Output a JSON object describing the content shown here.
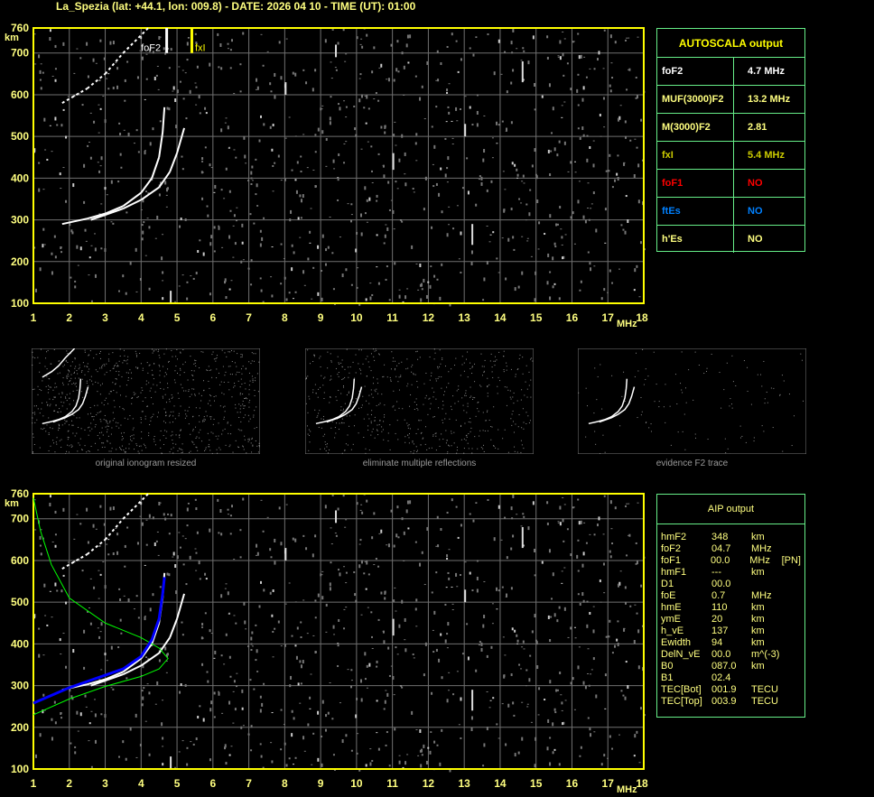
{
  "title": "La_Spezia (lat: +44.1, lon: 009.8) - DATE: 2026 04 10 - TIME (UT): 01:00",
  "colors": {
    "axis": "#ffff00",
    "grid": "#808080",
    "table_border": "#66ee88",
    "trace": "#ffffff",
    "profile": "#00ff00",
    "aip_trace": "#0000ff",
    "foF1": "#ff0000",
    "ftEs": "#0080ff",
    "fxI": "#cccc00"
  },
  "chart_data": [
    {
      "type": "scatter",
      "name": "ionogram-autoscala",
      "xlabel": "MHz",
      "ylabel": "km",
      "xlim": [
        1,
        18
      ],
      "ylim": [
        100,
        760
      ],
      "grid": true,
      "x_ticks": [
        "1",
        "2",
        "3",
        "4",
        "5",
        "6",
        "7",
        "8",
        "9",
        "10",
        "11",
        "12",
        "13",
        "14",
        "15",
        "16",
        "17",
        "18"
      ],
      "y_ticks": [
        "100",
        "200",
        "300",
        "400",
        "500",
        "600",
        "700",
        "760"
      ],
      "markers": [
        {
          "label": "foF2",
          "x": 4.7,
          "color": "#ffffff"
        },
        {
          "label": "fxI",
          "x": 5.4,
          "color": "#ffff00"
        }
      ],
      "o_trace": [
        [
          1.8,
          290
        ],
        [
          2.5,
          303
        ],
        [
          3,
          315
        ],
        [
          3.5,
          333
        ],
        [
          4,
          365
        ],
        [
          4.3,
          400
        ],
        [
          4.5,
          450
        ],
        [
          4.6,
          510
        ],
        [
          4.65,
          570
        ]
      ],
      "x_trace": [
        [
          2.6,
          300
        ],
        [
          3,
          312
        ],
        [
          3.5,
          327
        ],
        [
          4,
          348
        ],
        [
          4.5,
          378
        ],
        [
          4.8,
          415
        ],
        [
          5,
          460
        ],
        [
          5.2,
          520
        ]
      ],
      "multi_reflection": [
        [
          1.8,
          580
        ],
        [
          2.5,
          615
        ],
        [
          3,
          650
        ],
        [
          3.5,
          700
        ],
        [
          4.2,
          760
        ]
      ]
    },
    {
      "type": "scatter",
      "name": "ionogram-aip",
      "xlabel": "MHz",
      "ylabel": "km",
      "xlim": [
        1,
        18
      ],
      "ylim": [
        100,
        760
      ],
      "grid": true,
      "profile": [
        [
          1,
          230
        ],
        [
          2,
          268
        ],
        [
          3,
          298
        ],
        [
          4,
          322
        ],
        [
          4.5,
          340
        ],
        [
          4.75,
          365
        ],
        [
          4.5,
          390
        ],
        [
          4,
          415
        ],
        [
          3,
          450
        ],
        [
          2,
          510
        ],
        [
          1.5,
          590
        ],
        [
          1.2,
          670
        ],
        [
          1,
          750
        ]
      ],
      "aip_trace": [
        [
          1,
          258
        ],
        [
          2,
          295
        ],
        [
          3,
          325
        ],
        [
          3.5,
          340
        ],
        [
          4,
          370
        ],
        [
          4.3,
          410
        ],
        [
          4.5,
          460
        ],
        [
          4.6,
          520
        ],
        [
          4.65,
          560
        ]
      ]
    }
  ],
  "autoscala": {
    "title": "AUTOSCALA output",
    "rows": [
      {
        "label": "foF2",
        "value": "4.7 MHz",
        "color": "#ffffff"
      },
      {
        "label": "MUF(3000)F2",
        "value": "13.2 MHz",
        "color": "#ffff80"
      },
      {
        "label": "M(3000)F2",
        "value": "2.81",
        "color": "#ffff80"
      },
      {
        "label": "fxI",
        "value": "5.4 MHz",
        "color": "#cccc00"
      },
      {
        "label": "foF1",
        "value": "NO",
        "color": "#ff0000"
      },
      {
        "label": "ftEs",
        "value": "NO",
        "color": "#0080ff"
      },
      {
        "label": "h'Es",
        "value": "NO",
        "color": "#ffff80"
      }
    ]
  },
  "aip": {
    "title": "AIP output",
    "rows": [
      [
        "hmF2",
        "348",
        "km",
        ""
      ],
      [
        "foF2",
        "04.7",
        "MHz",
        ""
      ],
      [
        "foF1",
        "00.0",
        "MHz",
        "[PN]"
      ],
      [
        "hmF1",
        "---",
        "km",
        ""
      ],
      [
        "D1",
        "00.0",
        "",
        ""
      ],
      [
        "foE",
        "0.7",
        "MHz",
        ""
      ],
      [
        "hmE",
        "110",
        "km",
        ""
      ],
      [
        "ymE",
        "20",
        "km",
        ""
      ],
      [
        "h_vE",
        "137",
        "km",
        ""
      ],
      [
        "Ewidth",
        "94",
        "km",
        ""
      ],
      [
        "DelN_vE",
        "00.0",
        "m^(-3)",
        ""
      ],
      [
        "B0",
        "087.0",
        "km",
        ""
      ],
      [
        "B1",
        "02.4",
        "",
        ""
      ],
      [
        "TEC[Bot]",
        "001.9",
        "TECU",
        ""
      ],
      [
        "TEC[Top]",
        "003.9",
        "TECU",
        ""
      ]
    ]
  },
  "thumbnails": [
    "original ionogram resized",
    "eliminate multiple reflections",
    "evidence F2 trace"
  ],
  "axis": {
    "km": "km",
    "mhz": "MHz"
  }
}
